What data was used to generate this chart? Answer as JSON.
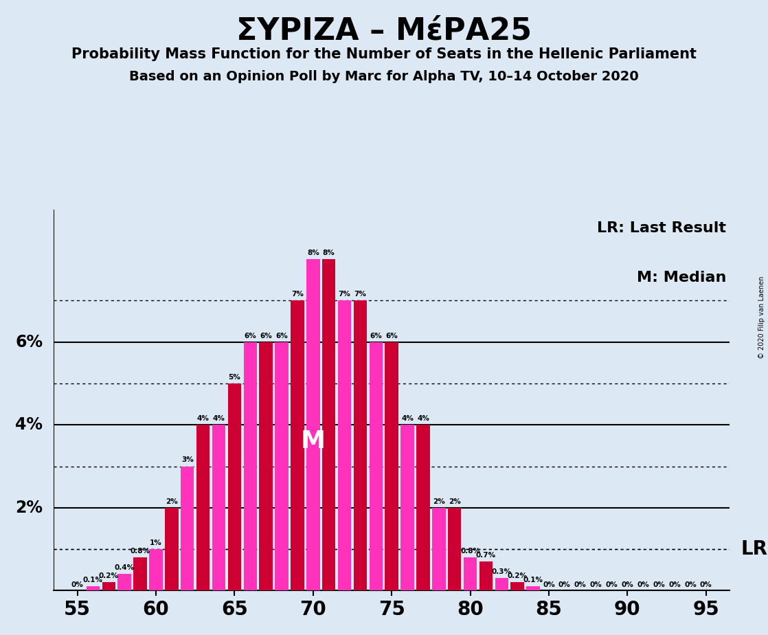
{
  "title": "ΣΥΡΙΖΑ – ΜέΡΑ25",
  "subtitle1": "Probability Mass Function for the Number of Seats in the Hellenic Parliament",
  "subtitle2": "Based on an Opinion Poll by Marc for Alpha TV, 10–14 October 2020",
  "copyright": "© 2020 Filip van Laenen",
  "lr_label": "LR: Last Result",
  "m_label": "M: Median",
  "lr_annotation": "LR",
  "m_annotation": "M",
  "background_color": "#dce9f5",
  "bar_color_odd": "#cc0033",
  "bar_color_even": "#ff33bb",
  "seats": [
    55,
    56,
    57,
    58,
    59,
    60,
    61,
    62,
    63,
    64,
    65,
    66,
    67,
    68,
    69,
    70,
    71,
    72,
    73,
    74,
    75,
    76,
    77,
    78,
    79,
    80,
    81,
    82,
    83,
    84,
    85,
    86,
    87,
    88,
    89,
    90,
    91,
    92,
    93,
    94,
    95
  ],
  "probs": [
    0.0,
    0.1,
    0.2,
    0.4,
    0.8,
    1.0,
    2.0,
    3.0,
    4.0,
    4.0,
    5.0,
    6.0,
    6.0,
    6.0,
    7.0,
    8.0,
    8.0,
    7.0,
    7.0,
    6.0,
    6.0,
    4.0,
    4.0,
    2.0,
    2.0,
    0.8,
    0.7,
    0.3,
    0.2,
    0.1,
    0.0,
    0.0,
    0.0,
    0.0,
    0.0,
    0.0,
    0.0,
    0.0,
    0.0,
    0.0,
    0.0
  ],
  "median_seat": 70,
  "lr_value": 1.0,
  "xlim": [
    53.5,
    96.5
  ],
  "ylim": [
    0,
    9.2
  ],
  "xticks": [
    55,
    60,
    65,
    70,
    75,
    80,
    85,
    90,
    95
  ],
  "solid_hlines": [
    2,
    4,
    6
  ],
  "dotted_hlines": [
    1,
    3,
    5,
    7
  ],
  "ylabel_vals": [
    2,
    4,
    6
  ],
  "ylabel_labels": [
    "2%",
    "4%",
    "6%"
  ]
}
